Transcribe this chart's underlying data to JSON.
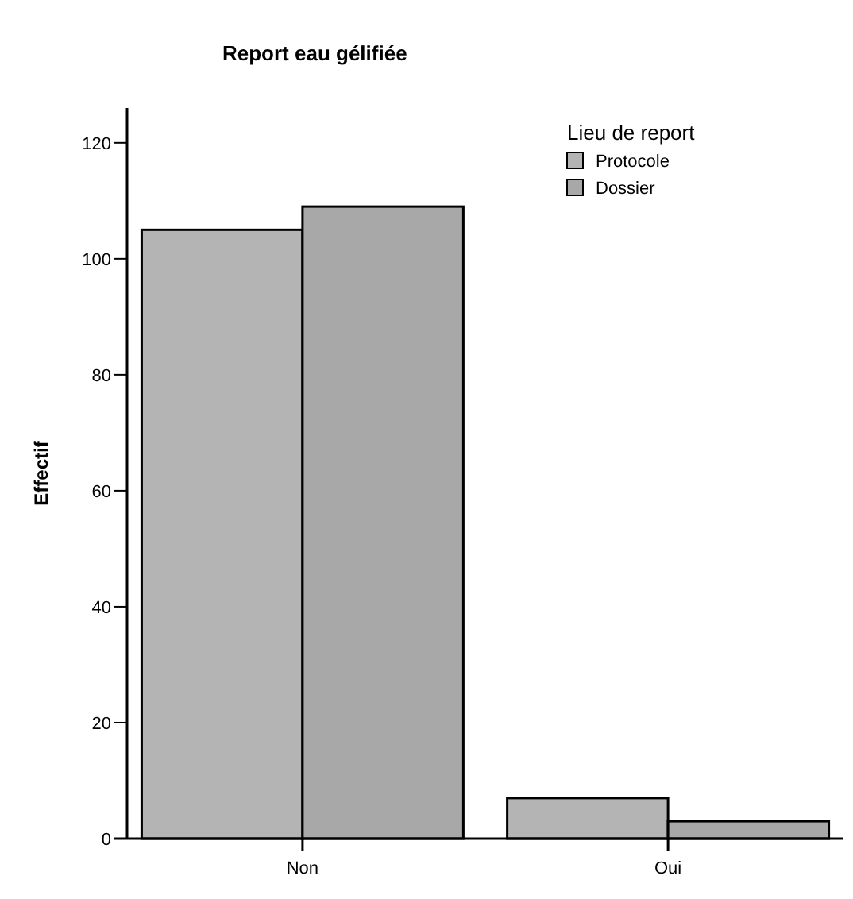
{
  "chart_data": {
    "type": "bar",
    "title": "Report eau gélifiée",
    "ylabel": "Effectif",
    "legend_title": "Lieu de report",
    "categories": [
      "Non",
      "Oui"
    ],
    "series": [
      {
        "name": "Protocole",
        "color": "#b4b4b4",
        "values": [
          105,
          7
        ]
      },
      {
        "name": "Dossier",
        "color": "#a8a8a8",
        "values": [
          109,
          3
        ]
      }
    ],
    "ylim": [
      0,
      126
    ],
    "yticks": [
      0,
      20,
      40,
      60,
      80,
      100,
      120
    ],
    "grid": false,
    "legend": "top right"
  }
}
